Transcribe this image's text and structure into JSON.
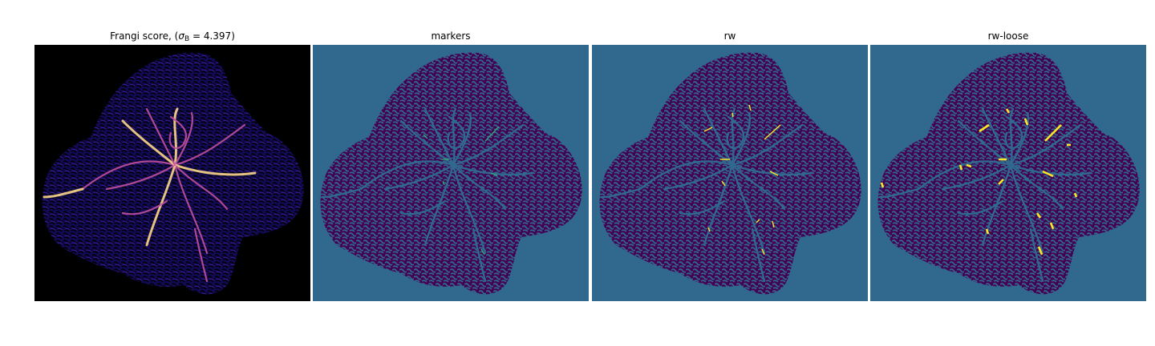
{
  "panels": [
    {
      "id": "frangi",
      "title_prefix": "Frangi score, (",
      "title_sigma": "σ",
      "title_sub": "B",
      "title_suffix": " = 4.397)"
    },
    {
      "id": "markers",
      "title": "markers"
    },
    {
      "id": "rw",
      "title": "rw"
    },
    {
      "id": "rw-loose",
      "title": "rw-loose"
    }
  ],
  "colors": {
    "frangi_background": "#000000",
    "frangi_low": "#1a0f6b",
    "frangi_mid": "#8a2aa5",
    "frangi_high": "#fcd78a",
    "label_background": "#31688e",
    "label_tissue": "#440154",
    "label_vessel": "#fde725",
    "label_marker": "#35b779"
  }
}
